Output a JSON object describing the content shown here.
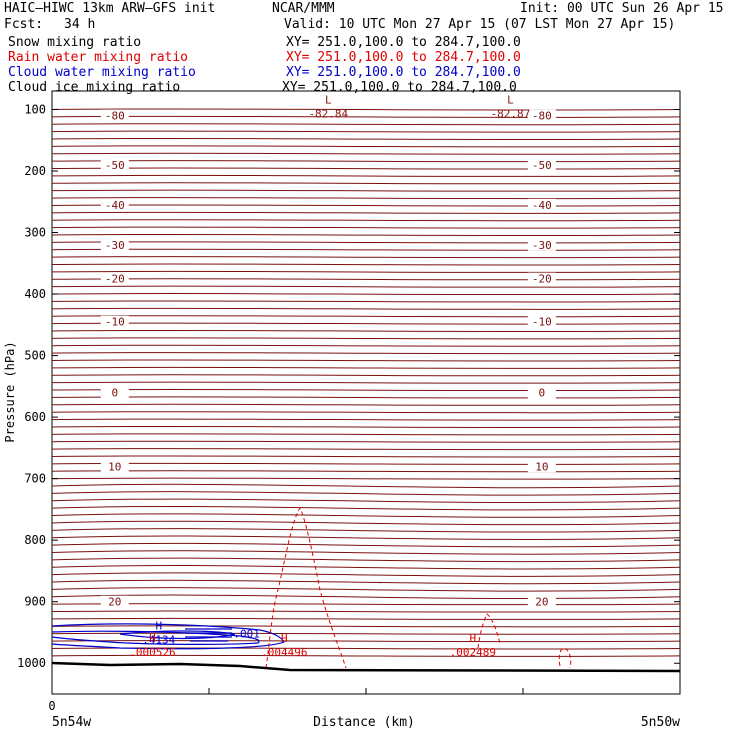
{
  "header": {
    "model": "HAIC–HIWC 13km ARW–GFS init",
    "org": "NCAR/MMM",
    "init": "Init: 00 UTC Sun 26 Apr 15",
    "fcst_label": "Fcst:",
    "fcst_value": "34 h",
    "valid": "Valid: 10 UTC Mon 27 Apr 15 (07 LST Mon 27 Apr 15)"
  },
  "fields": [
    {
      "name": "Snow mixing ratio",
      "xy": "XY= 251.0,100.0 to 284.7,100.0",
      "color": "#000000"
    },
    {
      "name": "Rain water mixing ratio",
      "xy": "XY= 251.0,100.0 to 284.7,100.0",
      "color": "#e00000"
    },
    {
      "name": "Cloud water mixing ratio",
      "xy": "XY= 251.0,100.0 to 284.7,100.0",
      "color": "#0000cc"
    },
    {
      "name": "Cloud ice mixing ratio",
      "xy": "XY= 251.0,100.0 to 284.7,100.0",
      "color": "#000000"
    }
  ],
  "chart_data": {
    "type": "contour cross-section",
    "xlabel": "Distance (km)",
    "ylabel": "Pressure (hPa)",
    "x_start_label": "5n54w",
    "x_end_label": "5n50w",
    "x_zero_label": "0",
    "y_ticks": [
      "100",
      "200",
      "300",
      "400",
      "500",
      "600",
      "700",
      "800",
      "900",
      "1000"
    ],
    "ylim": [
      1050,
      70
    ],
    "temperature_levels": [
      {
        "label": "-80",
        "p": 110
      },
      {
        "label": "-50",
        "p": 190
      },
      {
        "label": "-40",
        "p": 255
      },
      {
        "label": "-30",
        "p": 320
      },
      {
        "label": "-20",
        "p": 375
      },
      {
        "label": "-10",
        "p": 445
      },
      {
        "label": "0",
        "p": 560
      },
      {
        "label": "10",
        "p": 680
      },
      {
        "label": "20",
        "p": 900
      }
    ],
    "extrema": [
      {
        "type": "L",
        "value": "-82.84",
        "x_frac": 0.44,
        "p": 100,
        "color": "#8b1010"
      },
      {
        "type": "L",
        "value": "-82.87",
        "x_frac": 0.73,
        "p": 100,
        "color": "#8b1010"
      },
      {
        "type": "H",
        "value": ".4134",
        "x_frac": 0.17,
        "p": 955,
        "color": "#0000cc"
      },
      {
        "type": "",
        "value": ".001",
        "x_frac": 0.31,
        "p": 945,
        "color": "#0000cc"
      },
      {
        "type": "H",
        "value": ".000526",
        "x_frac": 0.16,
        "p": 975,
        "color": "#e00000"
      },
      {
        "type": "H",
        "value": ".004496",
        "x_frac": 0.37,
        "p": 975,
        "color": "#e00000"
      },
      {
        "type": "H",
        "value": ".002489",
        "x_frac": 0.67,
        "p": 975,
        "color": "#e00000"
      }
    ],
    "grid": false
  }
}
